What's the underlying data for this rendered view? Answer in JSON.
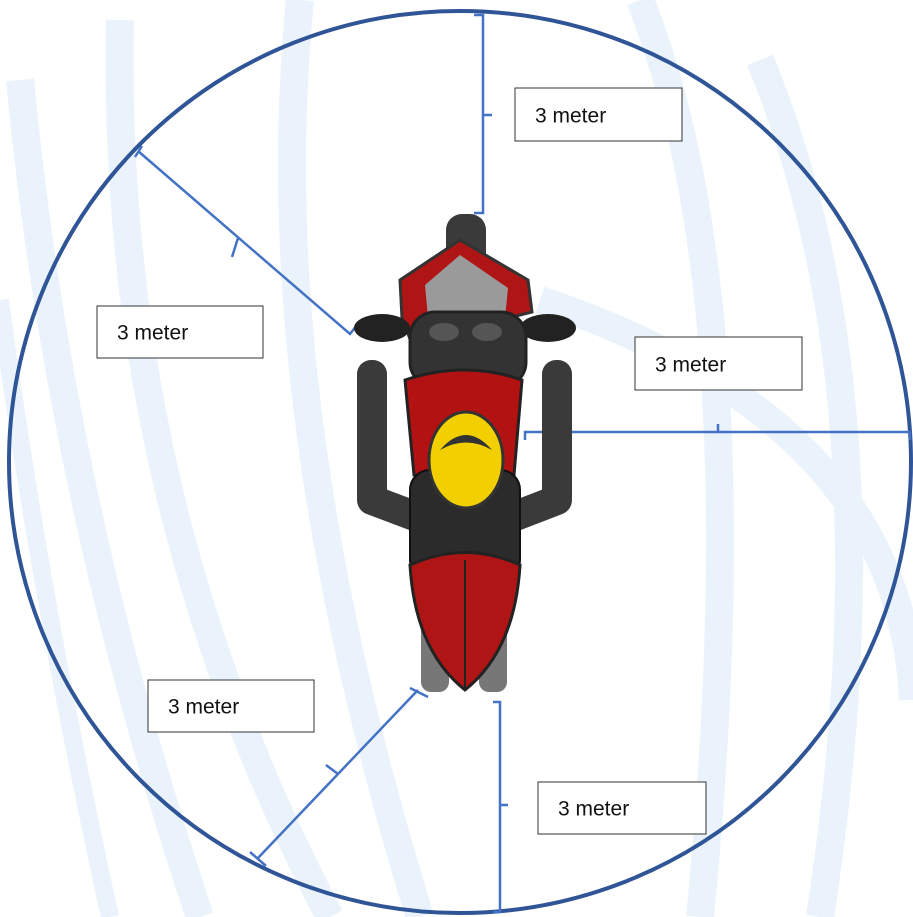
{
  "labels": [
    "3 meter",
    "3 meter",
    "3 meter",
    "3 meter",
    "3 meter"
  ]
}
